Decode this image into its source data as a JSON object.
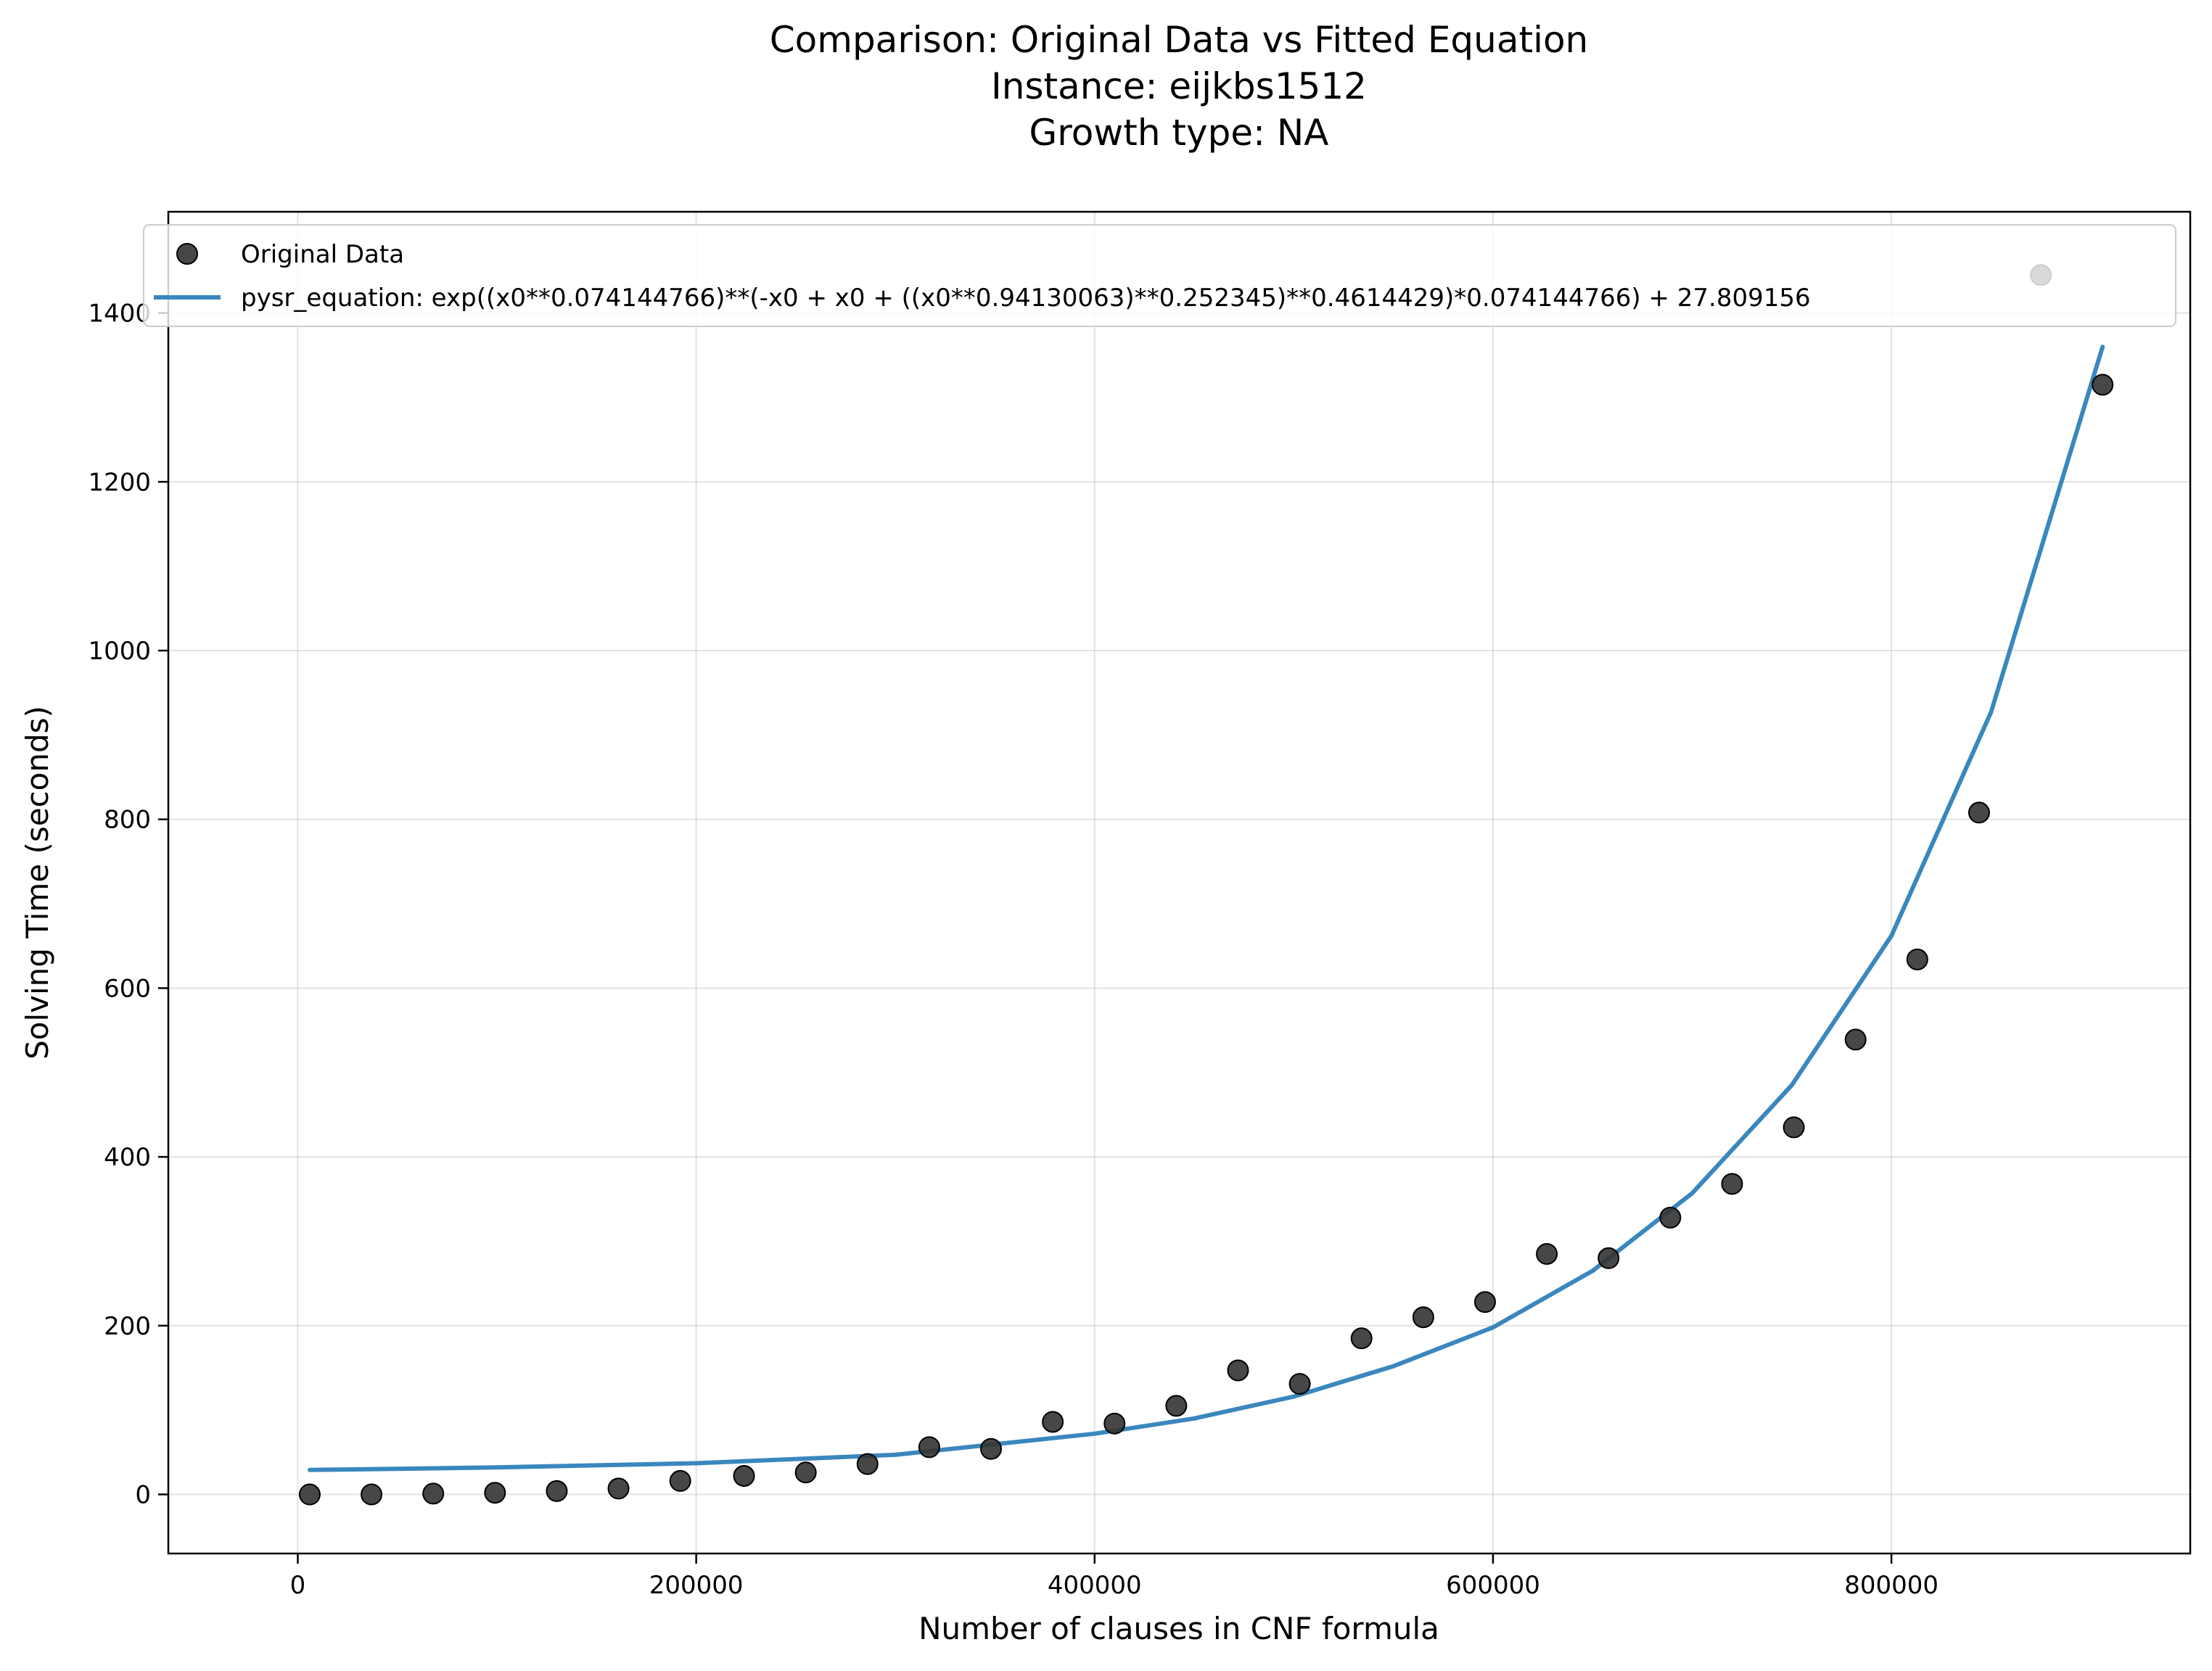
{
  "chart_data": {
    "type": "scatter",
    "title": [
      "Comparison: Original Data vs Fitted Equation",
      "Instance: eijkbs1512",
      "Growth type: NA"
    ],
    "xlabel": "Number of clauses in CNF formula",
    "ylabel": "Solving Time (seconds)",
    "xlim": [
      -65000,
      950000
    ],
    "ylim": [
      -70,
      1520
    ],
    "xticks": [
      0,
      200000,
      400000,
      600000,
      800000
    ],
    "yticks": [
      0,
      200,
      400,
      600,
      800,
      1000,
      1200,
      1400
    ],
    "grid": true,
    "legend_position": "top",
    "series": [
      {
        "name": "Original Data",
        "kind": "scatter",
        "color": "#333333",
        "x": [
          6000,
          37000,
          68000,
          99000,
          130000,
          161000,
          192000,
          224000,
          255000,
          286000,
          317000,
          348000,
          379000,
          410000,
          441000,
          472000,
          503000,
          534000,
          565000,
          596000,
          627000,
          658000,
          689000,
          720000,
          751000,
          782000,
          813000,
          844000,
          875000,
          906000
        ],
        "y": [
          0,
          0,
          1,
          2,
          4,
          7,
          16,
          22,
          26,
          36,
          56,
          54,
          86,
          84,
          105,
          147,
          131,
          185,
          210,
          228,
          285,
          280,
          328,
          368,
          435,
          539,
          634,
          808,
          1445,
          1315
        ]
      },
      {
        "name": "pysr_equation: exp((x0**0.074144766)**(-x0 + x0 + ((x0**0.94130063)**0.252345)**0.4614429)*0.074144766) + 27.809156",
        "kind": "line",
        "color": "#3a87be",
        "x": [
          6000,
          100000,
          200000,
          300000,
          400000,
          450000,
          500000,
          550000,
          600000,
          650000,
          700000,
          750000,
          800000,
          850000,
          906000
        ],
        "y": [
          29,
          32,
          37,
          47,
          72,
          90,
          116,
          152,
          198,
          265,
          357,
          485,
          662,
          927,
          1360
        ]
      }
    ]
  }
}
